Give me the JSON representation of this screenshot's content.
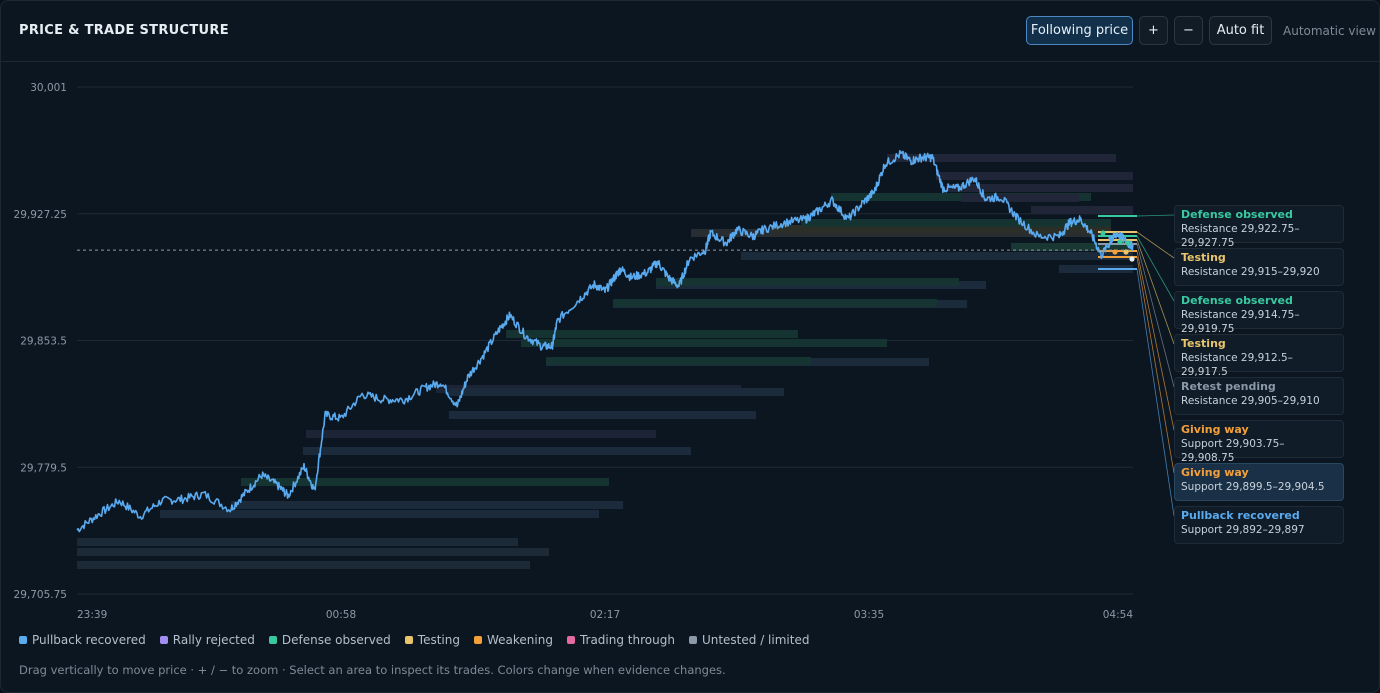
{
  "header": {
    "title": "PRICE & TRADE STRUCTURE",
    "following_price": "Following price",
    "zoom_in": "+",
    "zoom_out": "−",
    "auto_fit": "Auto fit",
    "automatic_view": "Automatic view"
  },
  "chart_data": {
    "type": "line",
    "x_tick_labels": [
      "23:39",
      "00:58",
      "02:17",
      "03:35",
      "04:54"
    ],
    "y_tick_labels": [
      "30,001",
      "29,927.25",
      "29,853.5",
      "29,779.5",
      "29,705.75"
    ],
    "ylim": [
      29705.75,
      30001
    ],
    "grid": true,
    "current_price": 29906,
    "series": [
      {
        "color": "#5aaaf0",
        "points": [
          [
            0,
            29743
          ],
          [
            0.02,
            29752
          ],
          [
            0.04,
            29760
          ],
          [
            0.06,
            29751
          ],
          [
            0.08,
            29760
          ],
          [
            0.1,
            29761
          ],
          [
            0.12,
            29764
          ],
          [
            0.145,
            29755
          ],
          [
            0.16,
            29765
          ],
          [
            0.175,
            29775
          ],
          [
            0.19,
            29769
          ],
          [
            0.2,
            29763
          ],
          [
            0.215,
            29780
          ],
          [
            0.225,
            29766
          ],
          [
            0.235,
            29810
          ],
          [
            0.25,
            29808
          ],
          [
            0.27,
            29822
          ],
          [
            0.29,
            29819
          ],
          [
            0.31,
            29819
          ],
          [
            0.33,
            29826
          ],
          [
            0.345,
            29829
          ],
          [
            0.36,
            29815
          ],
          [
            0.37,
            29832
          ],
          [
            0.385,
            29845
          ],
          [
            0.4,
            29860
          ],
          [
            0.41,
            29868
          ],
          [
            0.425,
            29856
          ],
          [
            0.44,
            29850
          ],
          [
            0.45,
            29850
          ],
          [
            0.455,
            29865
          ],
          [
            0.475,
            29877
          ],
          [
            0.49,
            29886
          ],
          [
            0.5,
            29882
          ],
          [
            0.51,
            29891
          ],
          [
            0.515,
            29895
          ],
          [
            0.525,
            29890
          ],
          [
            0.54,
            29893
          ],
          [
            0.55,
            29899
          ],
          [
            0.56,
            29890
          ],
          [
            0.57,
            29885
          ],
          [
            0.58,
            29901
          ],
          [
            0.595,
            29906
          ],
          [
            0.6,
            29916
          ],
          [
            0.615,
            29910
          ],
          [
            0.625,
            29918
          ],
          [
            0.64,
            29914
          ],
          [
            0.65,
            29918
          ],
          [
            0.67,
            29922
          ],
          [
            0.69,
            29924
          ],
          [
            0.7,
            29928
          ],
          [
            0.715,
            29935
          ],
          [
            0.73,
            29924
          ],
          [
            0.745,
            29934
          ],
          [
            0.755,
            29940
          ],
          [
            0.765,
            29956
          ],
          [
            0.78,
            29962
          ],
          [
            0.79,
            29958
          ],
          [
            0.8,
            29960
          ],
          [
            0.81,
            29960
          ],
          [
            0.82,
            29942
          ],
          [
            0.835,
            29942
          ],
          [
            0.85,
            29948
          ],
          [
            0.86,
            29936
          ],
          [
            0.875,
            29937
          ],
          [
            0.89,
            29925
          ],
          [
            0.91,
            29914
          ],
          [
            0.93,
            29914
          ],
          [
            0.94,
            29922
          ],
          [
            0.95,
            29924
          ],
          [
            0.96,
            29916
          ],
          [
            0.97,
            29903
          ],
          [
            0.98,
            29912
          ],
          [
            0.985,
            29916
          ],
          [
            0.995,
            29910
          ],
          [
            1,
            29908
          ]
        ]
      }
    ]
  },
  "zones": [
    {
      "status": "Defense observed",
      "range": "Resistance 29,922.75–29,927.75",
      "color": "#38c9a0"
    },
    {
      "status": "Testing",
      "range": "Resistance 29,915–29,920",
      "color": "#e9c46a"
    },
    {
      "status": "Defense observed",
      "range": "Resistance 29,914.75–29,919.75",
      "color": "#38c9a0"
    },
    {
      "status": "Testing",
      "range": "Resistance 29,912.5–29,917.5",
      "color": "#e9c46a"
    },
    {
      "status": "Retest pending",
      "range": "Resistance 29,905–29,910",
      "color": "#8b98a6"
    },
    {
      "status": "Giving way",
      "range": "Support 29,903.75–29,908.75",
      "color": "#f4a03a"
    },
    {
      "status": "Giving way",
      "range": "Support 29,899.5–29,904.5",
      "color": "#f4a03a"
    },
    {
      "status": "Pullback recovered",
      "range": "Support 29,892–29,897",
      "color": "#5aaaf0"
    }
  ],
  "legend": [
    {
      "label": "Pullback recovered",
      "color": "#5aaaf0"
    },
    {
      "label": "Rally rejected",
      "color": "#a18cf0"
    },
    {
      "label": "Defense observed",
      "color": "#38c9a0"
    },
    {
      "label": "Testing",
      "color": "#e9c46a"
    },
    {
      "label": "Weakening",
      "color": "#f4a03a"
    },
    {
      "label": "Trading through",
      "color": "#e46aa0"
    },
    {
      "label": "Untested / limited",
      "color": "#8b98a6"
    }
  ],
  "footer": "Drag vertically to move price · + / − to zoom · Select an area to inspect its trades. Colors change when evidence changes."
}
